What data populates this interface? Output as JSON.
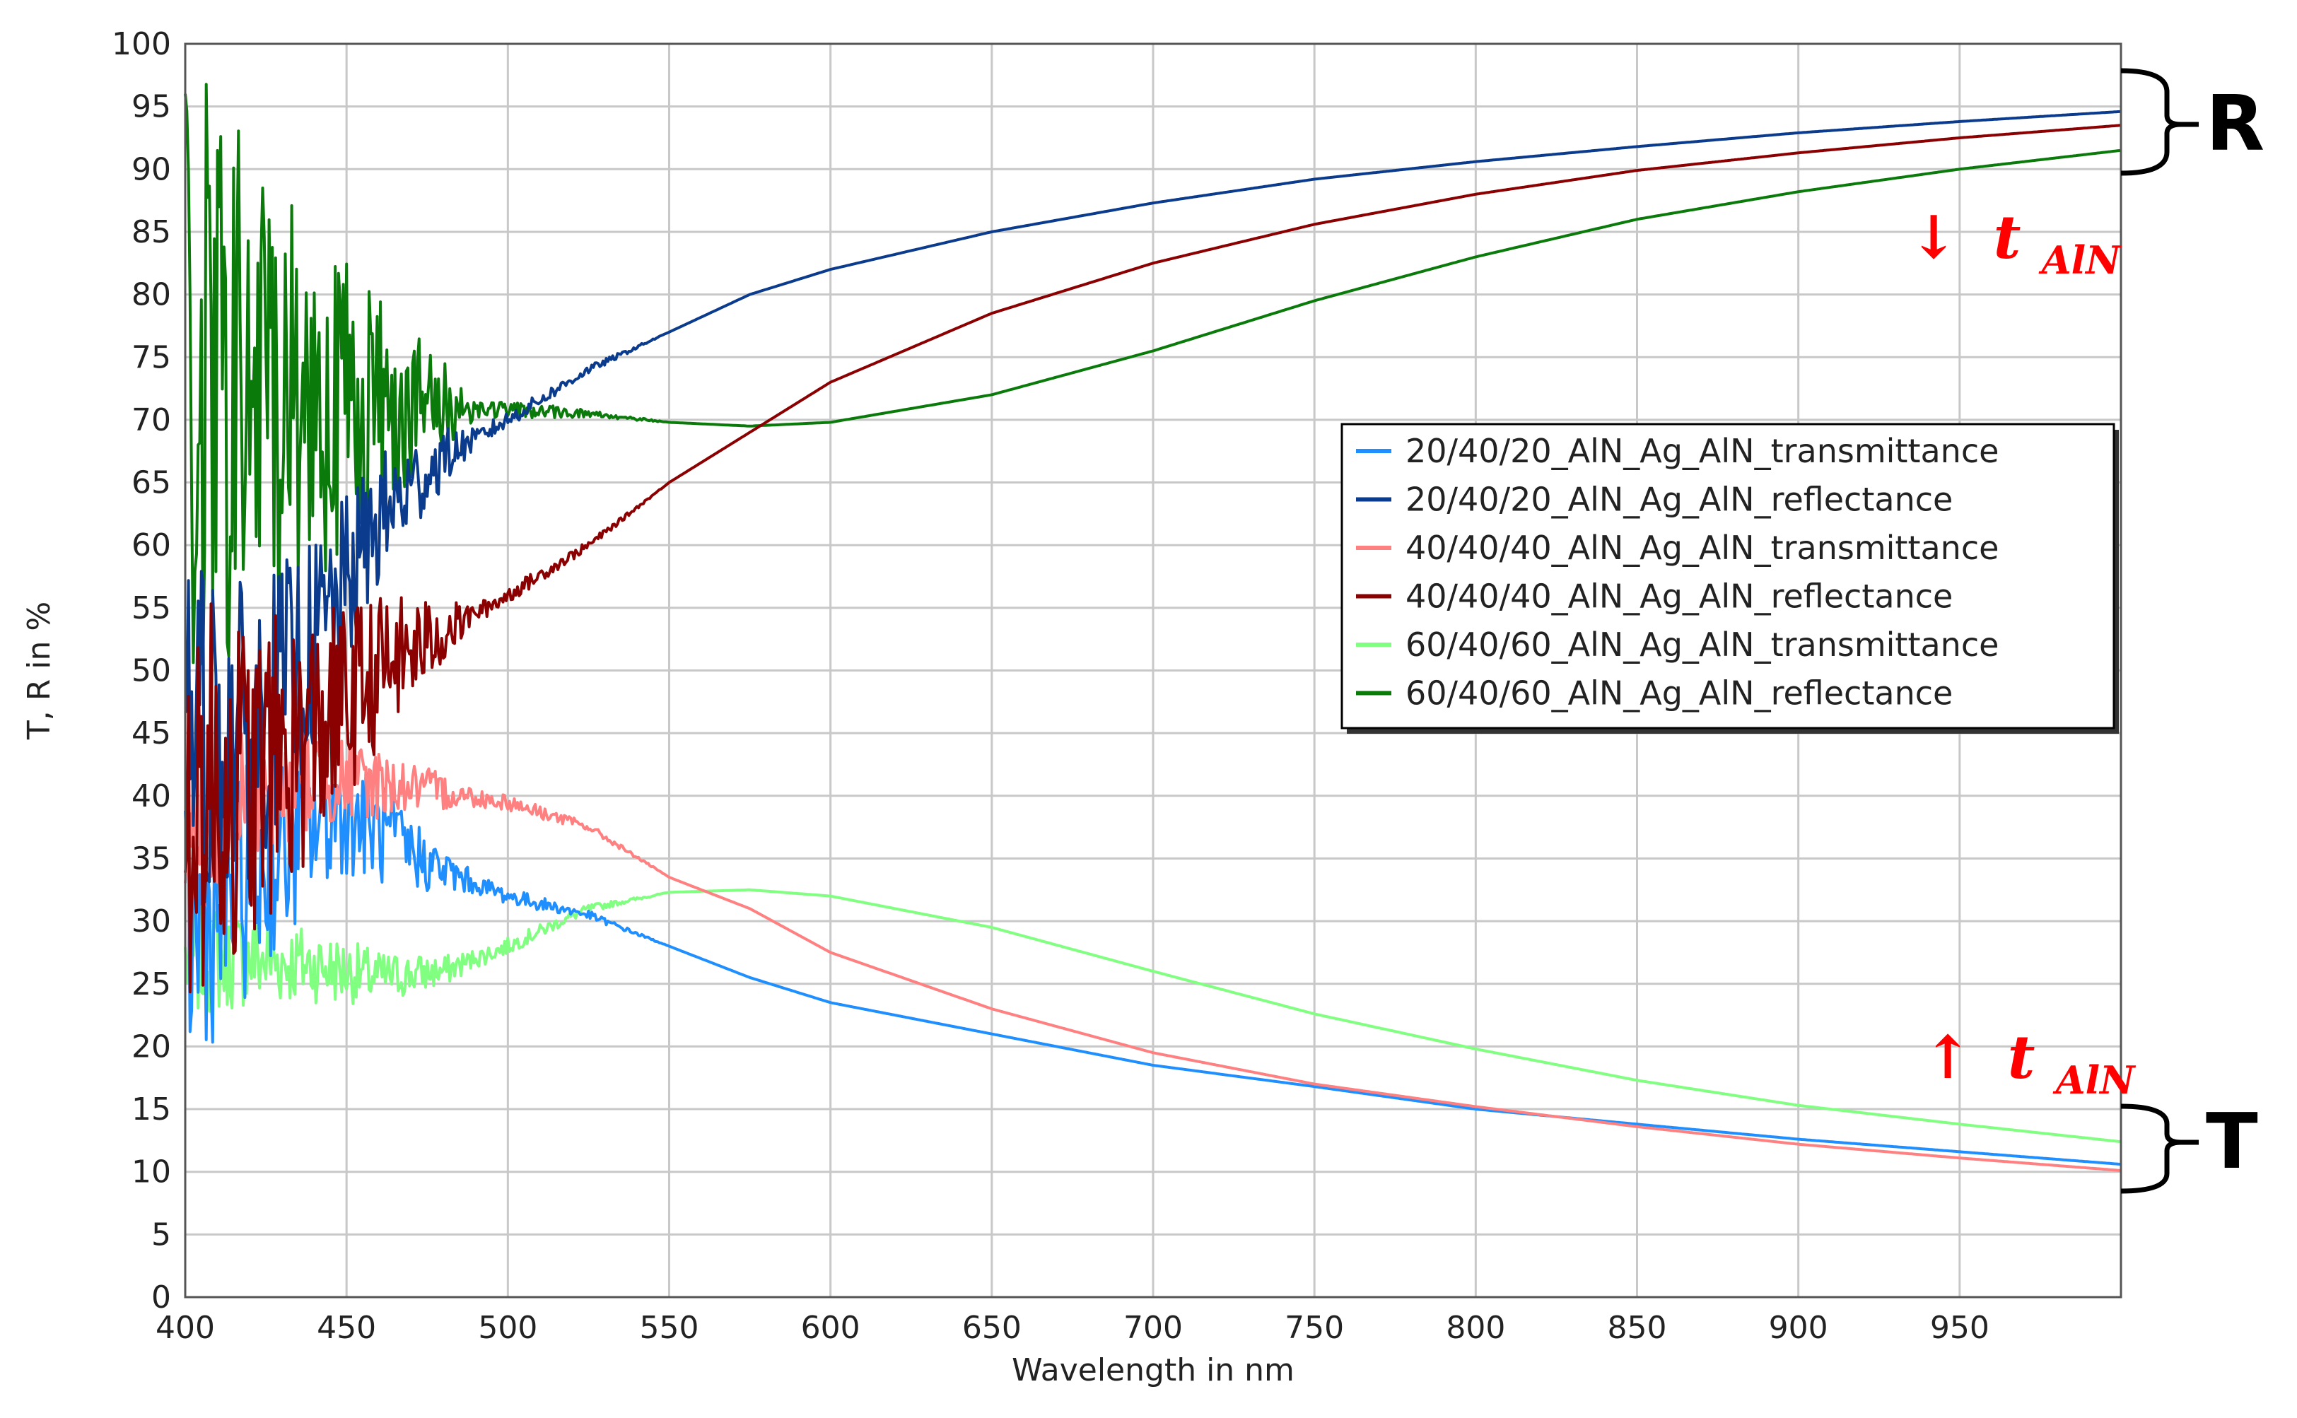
{
  "chart_data": {
    "type": "line",
    "title": "",
    "xlabel": "Wavelength in nm",
    "ylabel": "T, R in %",
    "xlim": [
      400,
      1000
    ],
    "ylim": [
      0,
      100
    ],
    "x_ticks": [
      400,
      450,
      500,
      550,
      600,
      650,
      700,
      750,
      800,
      850,
      900,
      950
    ],
    "y_ticks": [
      0,
      5,
      10,
      15,
      20,
      25,
      30,
      35,
      40,
      45,
      50,
      55,
      60,
      65,
      70,
      75,
      80,
      85,
      90,
      95,
      100
    ],
    "grid": true,
    "legend_position": "center-right",
    "series": [
      {
        "name": "20/40/20_AlN_Ag_AlN_transmittance",
        "color": "#1f8fff",
        "x": [
          400,
          420,
          440,
          450,
          460,
          480,
          500,
          525,
          550,
          575,
          600,
          650,
          700,
          750,
          800,
          850,
          900,
          950,
          1000
        ],
        "y": [
          28,
          33,
          38,
          39,
          37,
          34,
          32,
          30.5,
          28,
          25.5,
          23.5,
          21,
          18.5,
          16.8,
          15,
          13.8,
          12.6,
          11.6,
          10.6
        ]
      },
      {
        "name": "20/40/20_AlN_Ag_AlN_reflectance",
        "color": "#0b3b8c",
        "x": [
          400,
          420,
          440,
          460,
          480,
          500,
          525,
          550,
          575,
          600,
          650,
          700,
          750,
          800,
          850,
          900,
          950,
          1000
        ],
        "y": [
          45,
          45,
          52,
          62,
          67,
          70,
          74,
          77,
          80,
          82,
          85,
          87.3,
          89.2,
          90.6,
          91.8,
          92.9,
          93.8,
          94.6
        ]
      },
      {
        "name": "40/40/40_AlN_Ag_AlN_transmittance",
        "color": "#ff8080",
        "x": [
          400,
          420,
          440,
          460,
          480,
          500,
          525,
          550,
          575,
          600,
          650,
          700,
          750,
          800,
          850,
          900,
          950,
          1000
        ],
        "y": [
          36,
          40,
          41.5,
          41,
          40.3,
          39.5,
          37.5,
          33.5,
          31,
          27.5,
          23,
          19.5,
          17,
          15.2,
          13.6,
          12.2,
          11.1,
          10.1
        ]
      },
      {
        "name": "40/40/40_AlN_Ag_AlN_reflectance",
        "color": "#8b0000",
        "x": [
          400,
          420,
          440,
          460,
          480,
          500,
          525,
          550,
          575,
          600,
          650,
          700,
          750,
          800,
          850,
          900,
          950,
          1000
        ],
        "y": [
          40,
          41,
          45,
          50,
          53,
          56,
          60,
          65,
          69,
          73,
          78.5,
          82.5,
          85.6,
          88,
          89.9,
          91.3,
          92.5,
          93.5
        ]
      },
      {
        "name": "60/40/60_AlN_Ag_AlN_transmittance",
        "color": "#80ff80",
        "x": [
          400,
          420,
          440,
          460,
          480,
          500,
          525,
          550,
          575,
          600,
          650,
          700,
          750,
          800,
          850,
          900,
          950,
          1000
        ],
        "y": [
          27,
          27,
          26.5,
          25.5,
          26,
          28,
          31,
          32.3,
          32.5,
          32,
          29.5,
          26,
          22.6,
          19.8,
          17.3,
          15.3,
          13.8,
          12.4
        ]
      },
      {
        "name": "60/40/60_AlN_Ag_AlN_reflectance",
        "color": "#0a7a0a",
        "x": [
          400,
          420,
          440,
          460,
          480,
          500,
          525,
          550,
          575,
          600,
          650,
          700,
          750,
          800,
          850,
          900,
          950,
          1000
        ],
        "y": [
          72,
          72,
          72,
          71.5,
          71,
          70.8,
          70.5,
          69.8,
          69.5,
          69.8,
          72,
          75.5,
          79.5,
          83,
          86,
          88.2,
          90,
          91.5
        ]
      }
    ],
    "annotations": {
      "r_bracket_label": "R",
      "t_bracket_label": "T",
      "arrow_down_symbol": "↓",
      "arrow_up_symbol": "↑",
      "t_main": "t",
      "t_sub": "AlN"
    },
    "colors": {
      "grid": "#c8c8c8",
      "arrow": "#ff0000",
      "frame": "#555555"
    }
  }
}
